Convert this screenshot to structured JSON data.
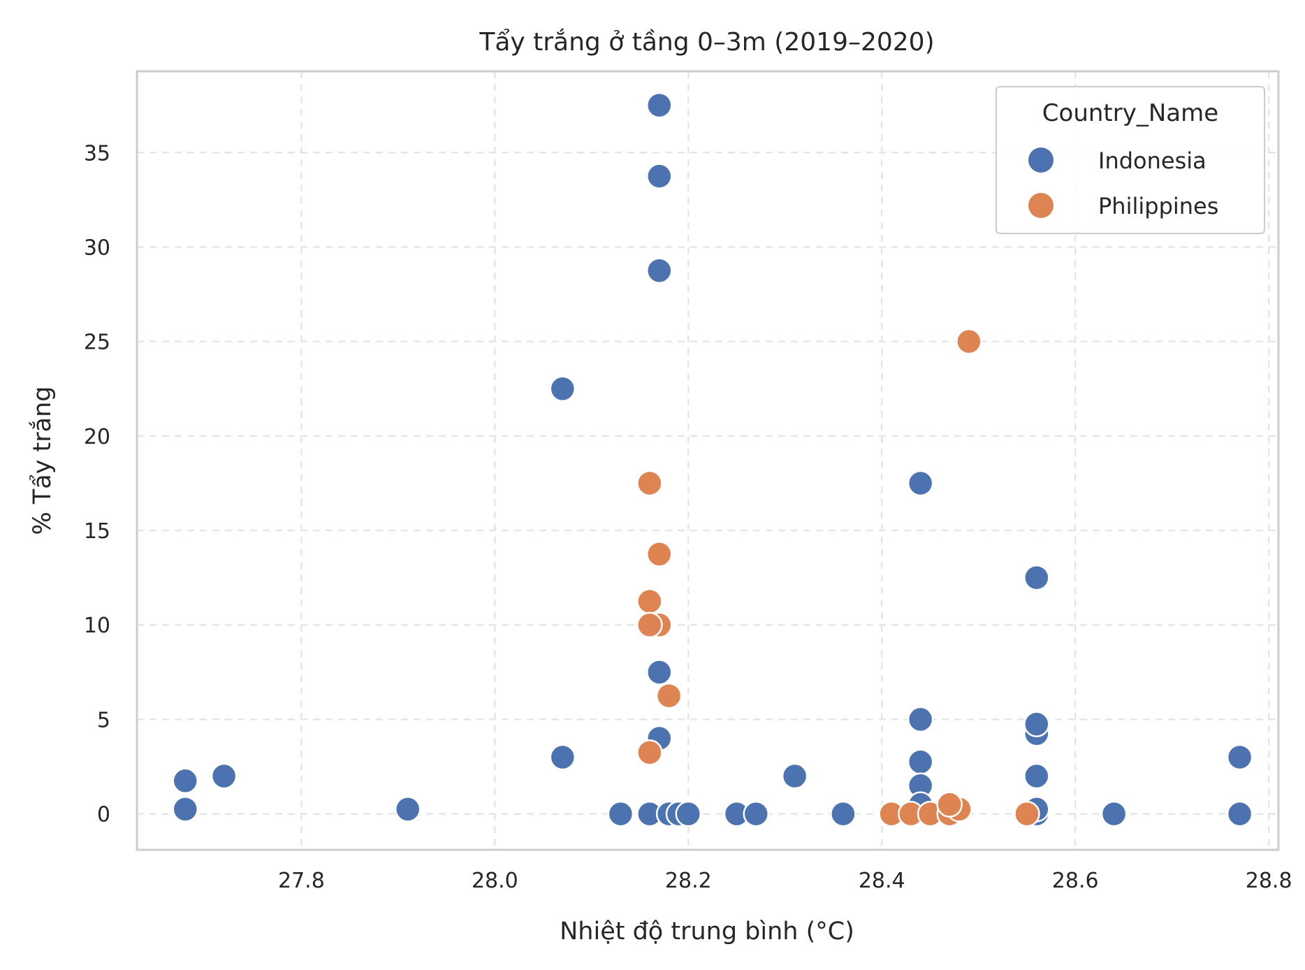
{
  "chart_data": {
    "type": "scatter",
    "title": "Tẩy trắng ở tầng 0–3m (2019–2020)",
    "xlabel": "Nhiệt độ trung bình (°C)",
    "ylabel": "% Tẩy trắng",
    "xlim": [
      27.63,
      28.81
    ],
    "ylim": [
      -1.9,
      39.3
    ],
    "xticks": [
      27.8,
      28.0,
      28.2,
      28.4,
      28.6,
      28.8
    ],
    "xtick_labels": [
      "27.8",
      "28.0",
      "28.2",
      "28.4",
      "28.6",
      "28.8"
    ],
    "yticks": [
      0,
      5,
      10,
      15,
      20,
      25,
      30,
      35
    ],
    "ytick_labels": [
      "0",
      "5",
      "10",
      "15",
      "20",
      "25",
      "30",
      "35"
    ],
    "grid": true,
    "legend": {
      "title": "Country_Name",
      "position": "top-right"
    },
    "series": [
      {
        "name": "Indonesia",
        "color": "#4c72b0",
        "points": [
          [
            27.68,
            1.75
          ],
          [
            27.68,
            0.25
          ],
          [
            27.72,
            2.0
          ],
          [
            27.91,
            0.25
          ],
          [
            28.07,
            22.5
          ],
          [
            28.07,
            3.0
          ],
          [
            28.13,
            0.0
          ],
          [
            28.16,
            0.0
          ],
          [
            28.17,
            37.5
          ],
          [
            28.17,
            33.75
          ],
          [
            28.17,
            28.75
          ],
          [
            28.17,
            7.5
          ],
          [
            28.17,
            4.0
          ],
          [
            28.18,
            0.0
          ],
          [
            28.19,
            0.0
          ],
          [
            28.2,
            0.0
          ],
          [
            28.25,
            0.0
          ],
          [
            28.27,
            0.0
          ],
          [
            28.31,
            2.0
          ],
          [
            28.36,
            0.0
          ],
          [
            28.44,
            17.5
          ],
          [
            28.44,
            5.0
          ],
          [
            28.44,
            2.75
          ],
          [
            28.44,
            1.5
          ],
          [
            28.44,
            0.5
          ],
          [
            28.56,
            12.5
          ],
          [
            28.56,
            4.25
          ],
          [
            28.56,
            4.75
          ],
          [
            28.56,
            2.0
          ],
          [
            28.56,
            0.0
          ],
          [
            28.56,
            0.25
          ],
          [
            28.64,
            0.0
          ],
          [
            28.77,
            3.0
          ],
          [
            28.77,
            0.0
          ]
        ]
      },
      {
        "name": "Philippines",
        "color": "#dd8452",
        "points": [
          [
            28.16,
            17.5
          ],
          [
            28.17,
            13.75
          ],
          [
            28.16,
            11.25
          ],
          [
            28.17,
            10.0
          ],
          [
            28.16,
            10.0
          ],
          [
            28.18,
            6.25
          ],
          [
            28.16,
            3.25
          ],
          [
            28.49,
            25.0
          ],
          [
            28.41,
            0.0
          ],
          [
            28.43,
            0.0
          ],
          [
            28.45,
            0.0
          ],
          [
            28.47,
            0.0
          ],
          [
            28.48,
            0.25
          ],
          [
            28.47,
            0.5
          ],
          [
            28.55,
            0.0
          ]
        ]
      }
    ]
  }
}
